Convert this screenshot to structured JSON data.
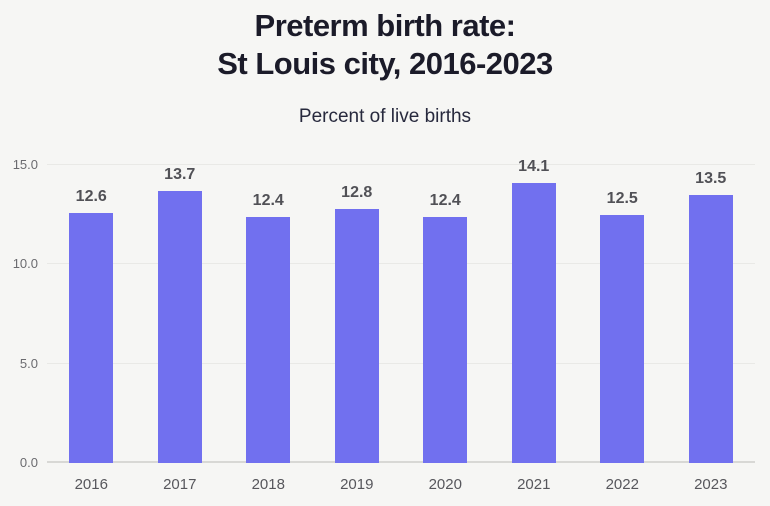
{
  "header": {
    "title_line1": "Preterm birth rate:",
    "title_line2": "St Louis city, 2016-2023",
    "subtitle": "Percent of live births"
  },
  "chart_data": {
    "type": "bar",
    "title": "Preterm birth rate: St Louis city, 2016-2023",
    "subtitle": "Percent of live births",
    "categories": [
      "2016",
      "2017",
      "2018",
      "2019",
      "2020",
      "2021",
      "2022",
      "2023"
    ],
    "values": [
      12.6,
      13.7,
      12.4,
      12.8,
      12.4,
      14.1,
      12.5,
      13.5
    ],
    "value_labels": [
      "12.6",
      "13.7",
      "12.4",
      "12.8",
      "12.4",
      "14.1",
      "12.5",
      "13.5"
    ],
    "xlabel": "",
    "ylabel": "Percent of live births",
    "ylim": [
      0,
      15
    ],
    "yticks": [
      0,
      5,
      10,
      15
    ],
    "ytick_labels": [
      "0.0",
      "5.0",
      "10.0",
      "15.0"
    ],
    "grid": true,
    "legend": false,
    "colors": {
      "bar": "#7170ef",
      "background": "#f6f6f4",
      "title": "#1b1b29",
      "subtitle": "#27293d",
      "value_label": "#515156",
      "tick_label": "#6b6b6f",
      "gridline": "#e9e9e6",
      "baseline": "#d8d8d5"
    }
  }
}
